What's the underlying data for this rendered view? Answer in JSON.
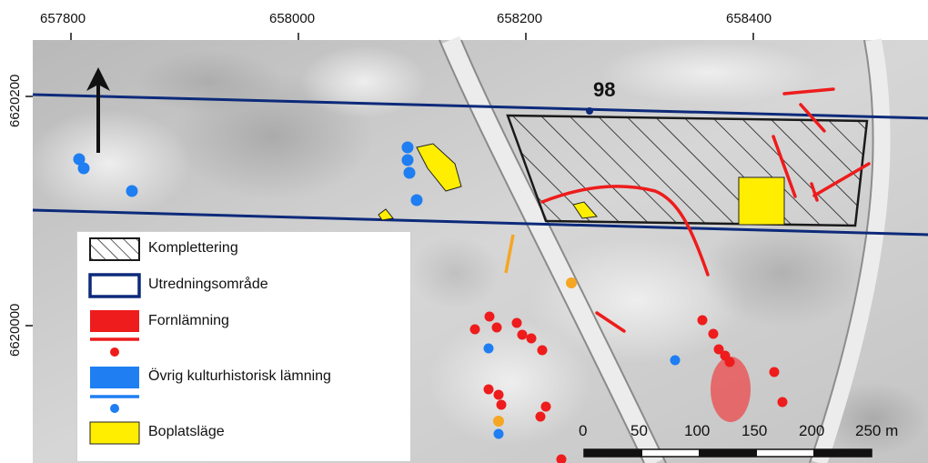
{
  "map": {
    "x_ticks": [
      "657800",
      "658000",
      "658200",
      "658400"
    ],
    "y_ticks": [
      "6620200",
      "6620000"
    ],
    "area_label": "98",
    "colors": {
      "hatch": "#1a1a1a",
      "utredning": "#0d2a7a",
      "fornlamning": "#ee1c1c",
      "ovrig": "#1e7ef2",
      "boplats": "#ffee00",
      "orange_point": "#f5a623"
    },
    "north_arrow_icon": "north-arrow-icon"
  },
  "legend": {
    "items": [
      {
        "label": "Komplettering"
      },
      {
        "label": "Utredningsområde"
      },
      {
        "label": "Fornlämning"
      },
      {
        "label": "Övrig kulturhistorisk lämning"
      },
      {
        "label": "Boplatsläge"
      }
    ]
  },
  "scalebar": {
    "labels": [
      "0",
      "50",
      "100",
      "150",
      "200",
      "250 m"
    ]
  }
}
